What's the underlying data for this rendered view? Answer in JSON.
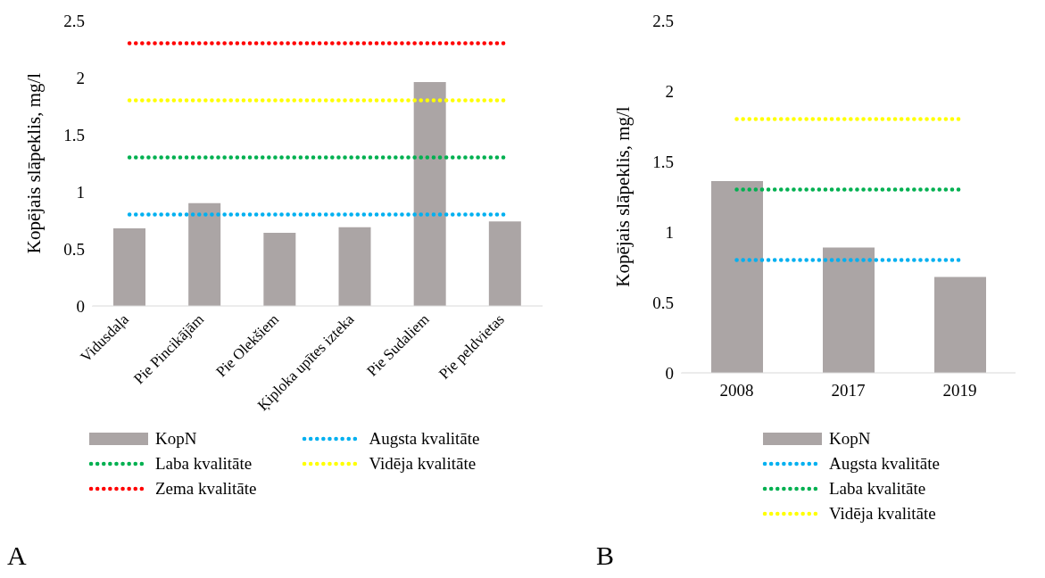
{
  "chart_data": [
    {
      "type": "bar",
      "ylabel": "Kopējais slāpeklis, mg/l",
      "categories": [
        "Vidusdaļa",
        "Pie Pincikājām",
        "Pie Olekšiem",
        "Ķiploka upītes izteka",
        "Pie Sudaliem",
        "Pie peldvietas"
      ],
      "ylim": [
        0,
        2.5
      ],
      "yticks": [
        0,
        0.5,
        1,
        1.5,
        2,
        2.5
      ],
      "grid": false,
      "legend": "bottom",
      "line_style": "dotted",
      "marker": "none",
      "annotations": [
        "A"
      ],
      "series": [
        {
          "name": "KopN",
          "color": "#aba5a5",
          "values": [
            0.68,
            0.9,
            0.64,
            0.69,
            1.96,
            0.74
          ]
        },
        {
          "name": "Augsta kvalitāte",
          "type": "line",
          "color": "#00b0f0",
          "values": [
            0.8,
            0.8,
            0.8,
            0.8,
            0.8,
            0.8
          ]
        },
        {
          "name": "Laba kvalitāte",
          "type": "line",
          "color": "#00b050",
          "values": [
            1.3,
            1.3,
            1.3,
            1.3,
            1.3,
            1.3
          ]
        },
        {
          "name": "Vidēja kvalitāte",
          "type": "line",
          "color": "#ffff00",
          "values": [
            1.8,
            1.8,
            1.8,
            1.8,
            1.8,
            1.8
          ]
        },
        {
          "name": "Zema kvalitāte",
          "type": "line",
          "color": "#ff0000",
          "values": [
            2.3,
            2.3,
            2.3,
            2.3,
            2.3,
            2.3
          ]
        }
      ]
    },
    {
      "type": "bar",
      "ylabel": "Kopējais slāpeklis, mg/l",
      "categories": [
        "2008",
        "2017",
        "2019"
      ],
      "ylim": [
        0,
        2.5
      ],
      "yticks": [
        0,
        0.5,
        1,
        1.5,
        2,
        2.5
      ],
      "grid": false,
      "legend": "bottom",
      "line_style": "dotted",
      "marker": "none",
      "annotations": [
        "B"
      ],
      "series": [
        {
          "name": "KopN",
          "color": "#aba5a5",
          "values": [
            1.36,
            0.89,
            0.68
          ]
        },
        {
          "name": "Augsta kvalitāte",
          "type": "line",
          "color": "#00b0f0",
          "values": [
            0.8,
            0.8,
            0.8
          ]
        },
        {
          "name": "Laba kvalitāte",
          "type": "line",
          "color": "#00b050",
          "values": [
            1.3,
            1.3,
            1.3
          ]
        },
        {
          "name": "Vidēja kvalitāte",
          "type": "line",
          "color": "#ffff00",
          "values": [
            1.8,
            1.8,
            1.8
          ]
        }
      ]
    }
  ]
}
